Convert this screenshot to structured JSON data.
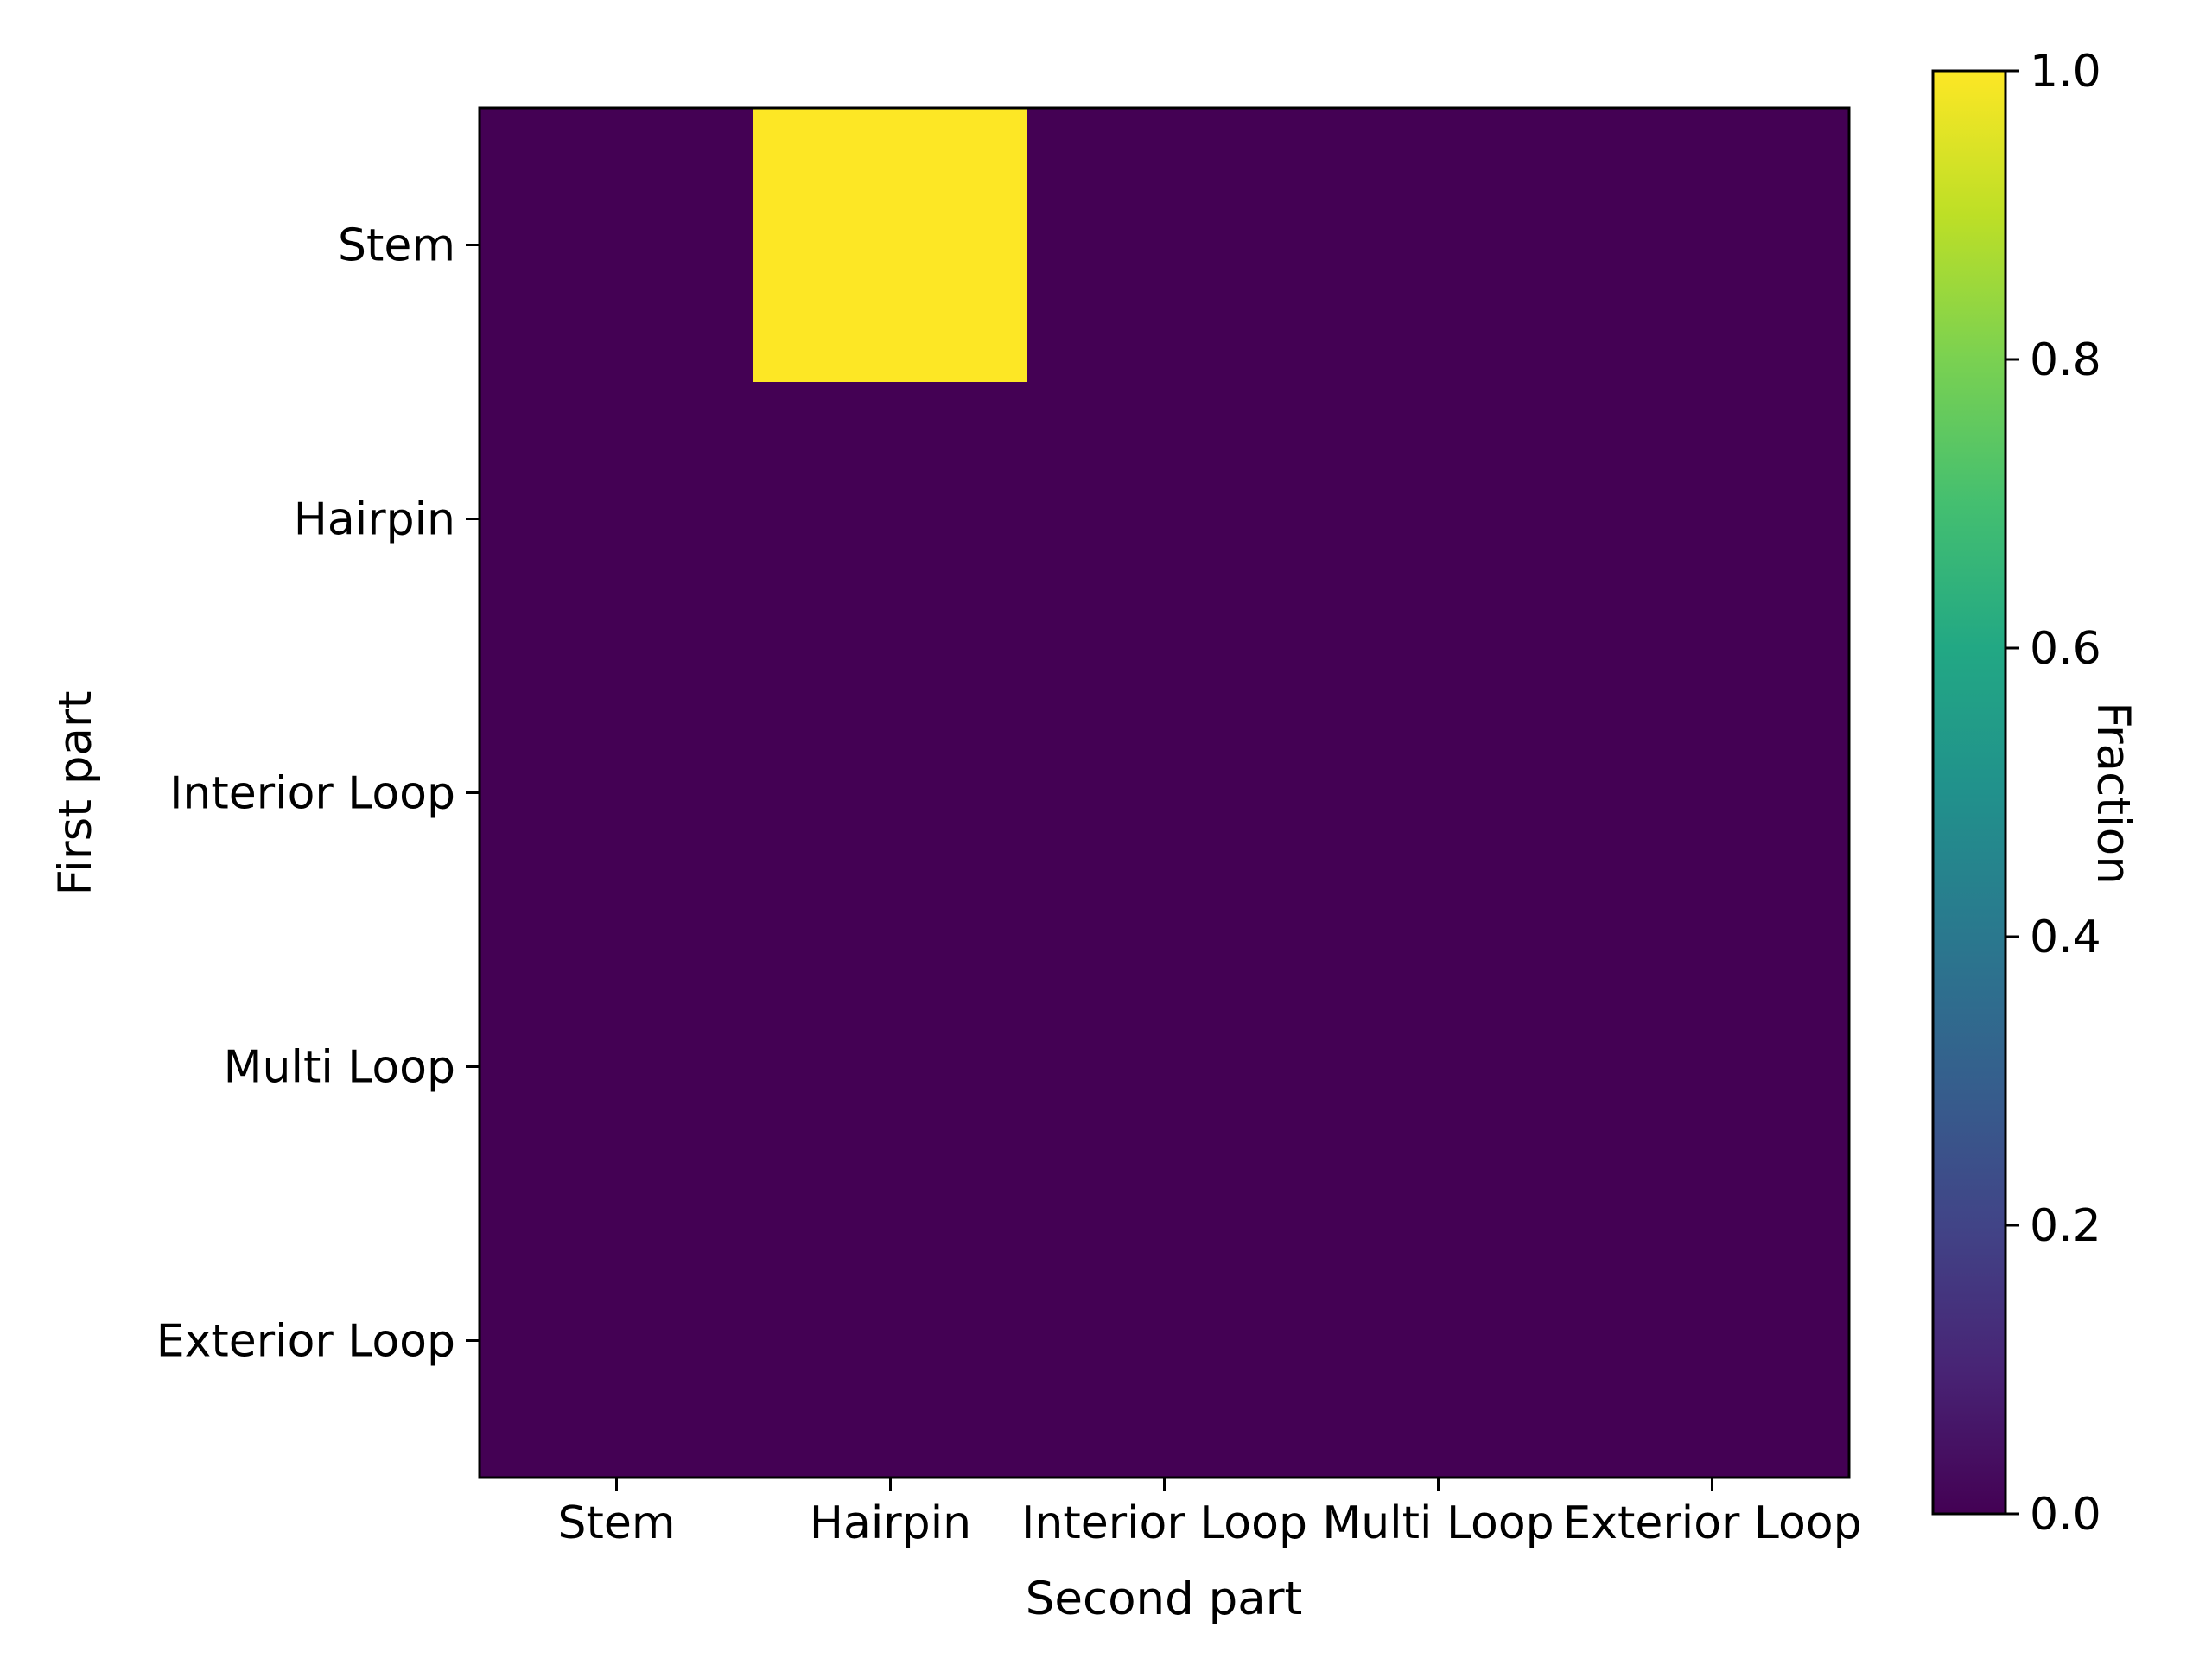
{
  "chart_data": {
    "type": "heatmap",
    "x_categories": [
      "Stem",
      "Hairpin",
      "Interior Loop",
      "Multi Loop",
      "Exterior Loop"
    ],
    "y_categories": [
      "Stem",
      "Hairpin",
      "Interior Loop",
      "Multi Loop",
      "Exterior Loop"
    ],
    "values": [
      [
        0,
        1,
        0,
        0,
        0
      ],
      [
        0,
        0,
        0,
        0,
        0
      ],
      [
        0,
        0,
        0,
        0,
        0
      ],
      [
        0,
        0,
        0,
        0,
        0
      ],
      [
        0,
        0,
        0,
        0,
        0
      ]
    ],
    "xlabel": "Second part",
    "ylabel": "First part",
    "colorbar": {
      "label": "Fraction",
      "range": [
        0.0,
        1.0
      ],
      "ticks": [
        "0.0",
        "0.2",
        "0.4",
        "0.6",
        "0.8",
        "1.0"
      ],
      "tick_values": [
        0.0,
        0.2,
        0.4,
        0.6,
        0.8,
        1.0
      ]
    },
    "colormap": "viridis",
    "colors": {
      "min": "#440154",
      "max": "#fde725"
    }
  }
}
